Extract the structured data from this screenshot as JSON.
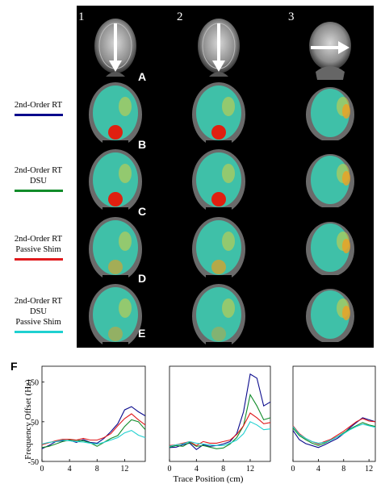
{
  "figure": {
    "column_numbers": [
      "1",
      "2",
      "3"
    ],
    "row_letters": [
      "A",
      "B",
      "C",
      "D",
      "E"
    ],
    "panel_F_label": "F"
  },
  "legend": [
    {
      "lines": [
        "2nd-Order RT"
      ],
      "color": "#0a0a8c"
    },
    {
      "lines": [
        "2nd-Order RT",
        "DSU"
      ],
      "color": "#118c2a"
    },
    {
      "lines": [
        "2nd-Order RT",
        "Passive Shim"
      ],
      "color": "#e0191c"
    },
    {
      "lines": [
        "2nd-Order RT",
        "DSU",
        "Passive Shim"
      ],
      "color": "#1fd0d0"
    }
  ],
  "colors": {
    "map_background": "#000000",
    "fieldmap_base": "#3fc0a8"
  },
  "chart_data": [
    {
      "type": "line",
      "xlabel": "",
      "ylabel": "Frequency Offset (Hz)",
      "xlim": [
        0,
        15
      ],
      "ylim": [
        -50,
        190
      ],
      "xticks": [
        0,
        4,
        8,
        12
      ],
      "yticks": [
        -50,
        50,
        150
      ],
      "series": [
        {
          "color": "#0a0a8c",
          "x": [
            0,
            1,
            2,
            3,
            4,
            5,
            6,
            7,
            8,
            9,
            10,
            11,
            12,
            13,
            14,
            15
          ],
          "y": [
            -18,
            -10,
            0,
            2,
            3,
            -2,
            5,
            -2,
            -4,
            8,
            25,
            45,
            80,
            88,
            75,
            65
          ]
        },
        {
          "color": "#118c2a",
          "x": [
            0,
            1,
            2,
            3,
            4,
            5,
            6,
            7,
            8,
            9,
            10,
            11,
            12,
            13,
            14,
            15
          ],
          "y": [
            -15,
            -12,
            -6,
            0,
            4,
            3,
            2,
            -3,
            -12,
            -2,
            8,
            15,
            38,
            55,
            50,
            30
          ]
        },
        {
          "color": "#e0191c",
          "x": [
            0,
            1,
            2,
            3,
            4,
            5,
            6,
            7,
            8,
            9,
            10,
            11,
            12,
            13,
            14,
            15
          ],
          "y": [
            -8,
            -3,
            2,
            6,
            6,
            4,
            8,
            4,
            4,
            10,
            20,
            40,
            58,
            70,
            55,
            42
          ]
        },
        {
          "color": "#1fd0d0",
          "x": [
            0,
            1,
            2,
            3,
            4,
            5,
            6,
            7,
            8,
            9,
            10,
            11,
            12,
            13,
            14,
            15
          ],
          "y": [
            -6,
            -2,
            0,
            4,
            2,
            0,
            -1,
            -4,
            -6,
            -2,
            4,
            10,
            22,
            28,
            16,
            10
          ]
        }
      ]
    },
    {
      "type": "line",
      "xlabel": "Trace Position (cm)",
      "ylabel": "",
      "xlim": [
        0,
        15
      ],
      "ylim": [
        -50,
        190
      ],
      "xticks": [
        0,
        4,
        8,
        12
      ],
      "yticks": [],
      "series": [
        {
          "color": "#0a0a8c",
          "x": [
            0,
            1,
            2,
            3,
            4,
            5,
            6,
            7,
            8,
            9,
            10,
            11,
            12,
            13,
            14,
            15
          ],
          "y": [
            -15,
            -14,
            -8,
            -4,
            -20,
            -8,
            -12,
            -10,
            -6,
            0,
            20,
            75,
            170,
            160,
            90,
            100
          ]
        },
        {
          "color": "#118c2a",
          "x": [
            0,
            1,
            2,
            3,
            4,
            5,
            6,
            7,
            8,
            9,
            10,
            11,
            12,
            13,
            14,
            15
          ],
          "y": [
            -14,
            -10,
            -12,
            -2,
            -12,
            -10,
            -14,
            -18,
            -16,
            -6,
            10,
            40,
            118,
            90,
            55,
            60
          ]
        },
        {
          "color": "#e0191c",
          "x": [
            0,
            1,
            2,
            3,
            4,
            5,
            6,
            7,
            8,
            9,
            10,
            11,
            12,
            13,
            14,
            15
          ],
          "y": [
            -10,
            -8,
            -4,
            0,
            -10,
            0,
            -4,
            -4,
            0,
            4,
            18,
            40,
            72,
            60,
            45,
            48
          ]
        },
        {
          "color": "#1fd0d0",
          "x": [
            0,
            1,
            2,
            3,
            4,
            5,
            6,
            7,
            8,
            9,
            10,
            11,
            12,
            13,
            14,
            15
          ],
          "y": [
            -12,
            -8,
            -6,
            0,
            -4,
            -6,
            -8,
            -10,
            -10,
            -4,
            4,
            20,
            50,
            42,
            30,
            32
          ]
        }
      ]
    },
    {
      "type": "line",
      "xlabel": "",
      "ylabel": "",
      "xlim": [
        0,
        13
      ],
      "ylim": [
        -50,
        190
      ],
      "xticks": [
        0,
        4,
        8,
        12
      ],
      "yticks": [],
      "series": [
        {
          "color": "#0a0a8c",
          "x": [
            0,
            1,
            2,
            3,
            4,
            5,
            6,
            7,
            8,
            9,
            10,
            11,
            12,
            13
          ],
          "y": [
            28,
            5,
            -5,
            -10,
            -15,
            -8,
            0,
            8,
            20,
            35,
            48,
            60,
            55,
            50
          ]
        },
        {
          "color": "#118c2a",
          "x": [
            0,
            1,
            2,
            3,
            4,
            5,
            6,
            7,
            8,
            9,
            10,
            11,
            12,
            13
          ],
          "y": [
            34,
            15,
            5,
            -4,
            -10,
            -4,
            4,
            12,
            22,
            32,
            40,
            48,
            42,
            38
          ]
        },
        {
          "color": "#e0191c",
          "x": [
            0,
            1,
            2,
            3,
            4,
            5,
            6,
            7,
            8,
            9,
            10,
            11,
            12,
            13
          ],
          "y": [
            40,
            20,
            8,
            0,
            -6,
            0,
            6,
            16,
            26,
            38,
            50,
            58,
            52,
            50
          ]
        },
        {
          "color": "#1fd0d0",
          "x": [
            0,
            1,
            2,
            3,
            4,
            5,
            6,
            7,
            8,
            9,
            10,
            11,
            12,
            13
          ],
          "y": [
            38,
            18,
            8,
            0,
            -4,
            -2,
            4,
            12,
            20,
            30,
            38,
            44,
            40,
            36
          ]
        }
      ]
    }
  ]
}
